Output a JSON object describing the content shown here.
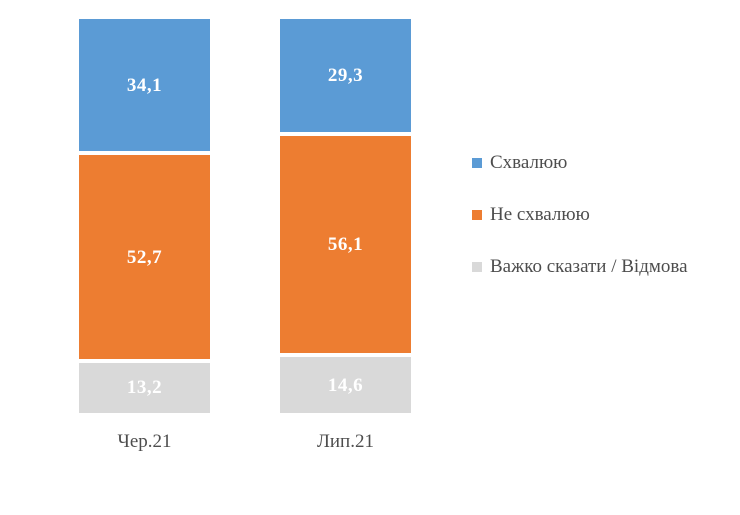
{
  "chart_data": {
    "type": "bar",
    "subtype": "stacked-column",
    "categories": [
      "Чер.21",
      "Лип.21"
    ],
    "series": [
      {
        "name": "Схвалюю",
        "color": "#5B9BD5",
        "values": [
          34.1,
          29.3
        ],
        "labels": [
          "34,1",
          "29,3"
        ]
      },
      {
        "name": "Не схвалюю",
        "color": "#ED7D31",
        "values": [
          52.7,
          56.1
        ],
        "labels": [
          "52,7",
          "56,1"
        ]
      },
      {
        "name": "Важко сказати / Відмова",
        "color": "#D9D9D9",
        "values": [
          13.2,
          14.6
        ],
        "labels": [
          "13,2",
          "14,6"
        ]
      }
    ],
    "title": "",
    "xlabel": "",
    "ylabel": "",
    "ylim": [
      0,
      100
    ],
    "grid": false,
    "legend_position": "right",
    "value_label_color": "#FFFFFF",
    "axis_text_color": "#4d4d4d",
    "background_color": "#FFFFFF"
  }
}
